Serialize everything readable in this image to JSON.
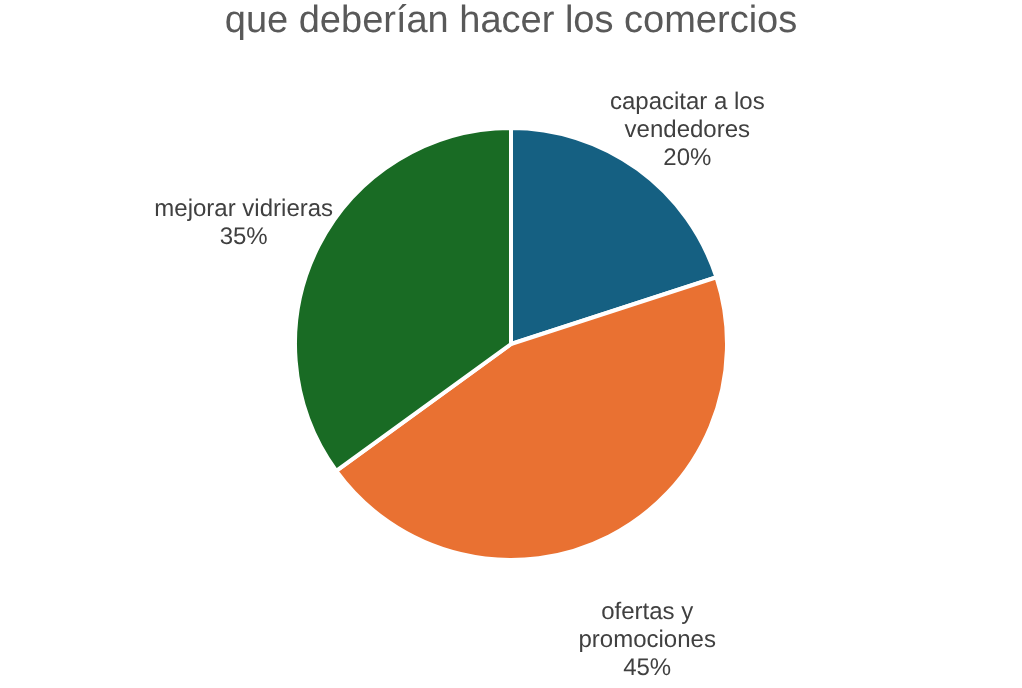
{
  "chart_data": {
    "type": "pie",
    "title": "que deberían hacer los comercios",
    "categories": [
      "capacitar a los vendedores",
      "ofertas y promociones",
      "mejorar vidrieras"
    ],
    "values": [
      20,
      45,
      35
    ],
    "colors": [
      "#156082",
      "#e97132",
      "#196b24"
    ],
    "value_labels": [
      "20%",
      "45%",
      "35%"
    ],
    "legend": false
  }
}
